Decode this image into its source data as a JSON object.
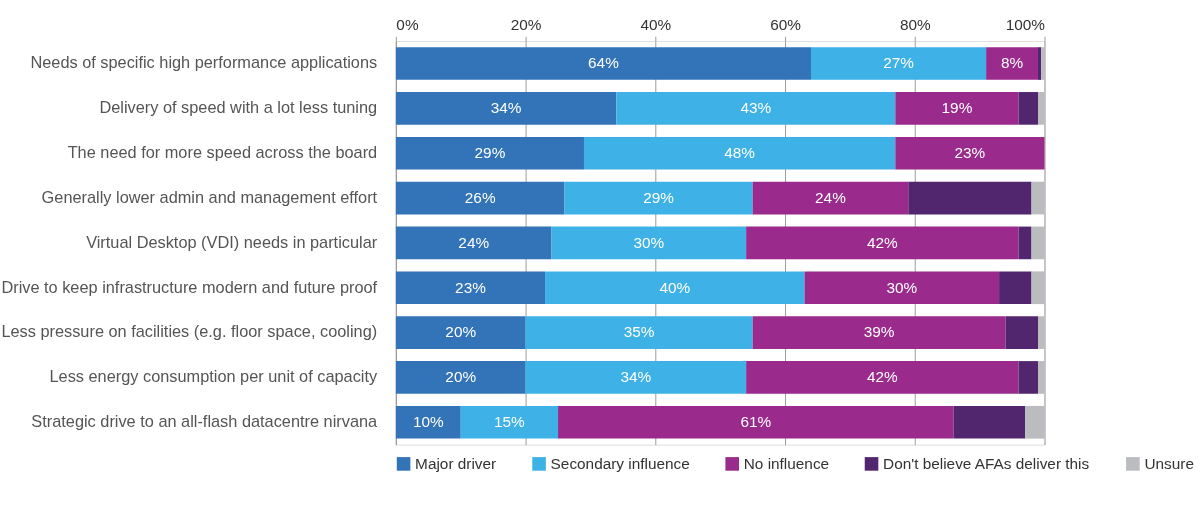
{
  "chart_data": {
    "type": "bar",
    "orientation": "horizontal",
    "stacked": true,
    "categories": [
      "Needs of specific high performance applications",
      "Delivery of speed with a lot less tuning",
      "The need for more speed across the board",
      "Generally lower admin and management effort",
      "Virtual Desktop (VDI) needs in particular",
      "Drive to keep infrastructure modern and future proof",
      "Less pressure on facilities (e.g. floor space, cooling)",
      "Less energy consumption per unit of capacity",
      "Strategic drive to an all-flash datacentre nirvana"
    ],
    "series": [
      {
        "name": "Major driver",
        "color": "#3373b8",
        "values": [
          64,
          34,
          29,
          26,
          24,
          23,
          20,
          20,
          10
        ],
        "value_labels": [
          "64%",
          "34%",
          "29%",
          "26%",
          "24%",
          "23%",
          "20%",
          "20%",
          "10%"
        ]
      },
      {
        "name": "Secondary influence",
        "color": "#3eb1e6",
        "values": [
          27,
          43,
          48,
          29,
          30,
          40,
          35,
          34,
          15
        ],
        "value_labels": [
          "27%",
          "43%",
          "48%",
          "29%",
          "30%",
          "40%",
          "35%",
          "34%",
          "15%"
        ]
      },
      {
        "name": "No influence",
        "color": "#9a2a8c",
        "values": [
          8,
          19,
          23,
          24,
          42,
          30,
          39,
          42,
          61
        ],
        "value_labels": [
          "8%",
          "19%",
          "23%",
          "24%",
          "42%",
          "30%",
          "39%",
          "42%",
          "61%"
        ]
      },
      {
        "name": "Don't believe AFAs deliver this",
        "color": "#51266f",
        "values": [
          0.5,
          3,
          0,
          19,
          2,
          5,
          5,
          3,
          11
        ]
      },
      {
        "name": "Unsure",
        "color": "#bbbcbf",
        "values": [
          0.5,
          1,
          0,
          2,
          2,
          2,
          1,
          1,
          3
        ]
      }
    ],
    "xlim": [
      0,
      100
    ],
    "xticks": [
      {
        "value": 0,
        "label": "0%"
      },
      {
        "value": 20,
        "label": "20%"
      },
      {
        "value": 40,
        "label": "40%"
      },
      {
        "value": 60,
        "label": "60%"
      },
      {
        "value": 80,
        "label": "80%"
      },
      {
        "value": 100,
        "label": "100%"
      }
    ],
    "grid": "x",
    "legend": "bottom"
  }
}
